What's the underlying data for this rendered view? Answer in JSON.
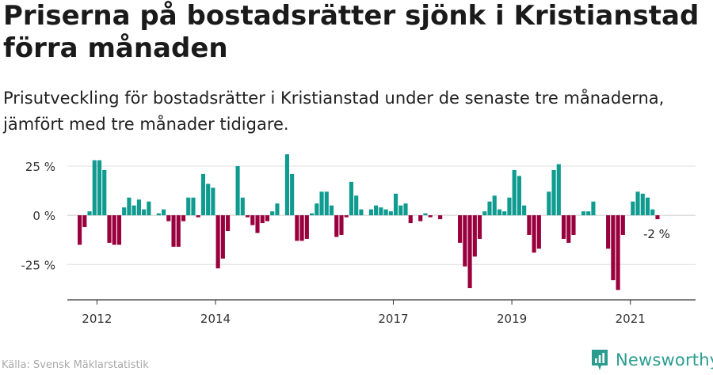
{
  "title": "Priserna på bostadsrätter sjönk i Kristianstad förra månaden",
  "subtitle": "Prisutveckling för bostadsrätter i Kristianstad under de senaste tre månaderna, jämfört med tre månader tidigare.",
  "source": "Källa: Svensk Mäklarstatistik",
  "brand": "Newsworthy",
  "colors": {
    "positive": "#0f9b90",
    "negative": "#99003d",
    "brand": "#2a9d8f",
    "grid": "#dddddd",
    "axis": "#333333"
  },
  "chart_data": {
    "type": "bar",
    "title": "Priserna på bostadsrätter sjönk i Kristianstad förra månaden",
    "ylabel": "",
    "xlabel": "",
    "y_unit": "%",
    "ylim": [
      -43,
      27
    ],
    "yticks": [
      25,
      0,
      -25
    ],
    "ytick_labels": [
      "25 %",
      "0 %",
      "-25 %"
    ],
    "x_start": 2011.7083,
    "x_step": 0.08333,
    "xticks": [
      2012,
      2014,
      2017,
      2019,
      2021
    ],
    "xtick_labels": [
      "2012",
      "2014",
      "2017",
      "2019",
      "2021"
    ],
    "xlim": [
      2011.5,
      2022.1
    ],
    "last_value_label": "-2 %",
    "values": [
      -15,
      -6,
      2,
      28,
      28,
      23,
      -14,
      -15,
      -15,
      4,
      9,
      5,
      8,
      3,
      7,
      0,
      1,
      3,
      -3,
      -16,
      -16,
      -3,
      9,
      9,
      -1,
      21,
      16,
      14,
      -27,
      -22,
      -8,
      0,
      25,
      9,
      -1,
      -5,
      -9,
      -4,
      -3,
      2,
      6,
      0,
      34,
      21,
      -13,
      -13,
      -12,
      1,
      6,
      12,
      12,
      5,
      -11,
      -10,
      -1,
      17,
      10,
      3,
      0,
      3,
      5,
      4,
      3,
      2,
      11,
      5,
      6,
      -4,
      0,
      -3,
      1,
      -1,
      0,
      -2,
      0,
      0,
      0,
      -14,
      -26,
      -37,
      -21,
      -12,
      2,
      7,
      10,
      3,
      2,
      9,
      23,
      20,
      5,
      -10,
      -19,
      -17,
      0,
      12,
      23,
      26,
      -12,
      -14,
      -10,
      0,
      2,
      2,
      7,
      0,
      0,
      -17,
      -33,
      -38,
      -10,
      0,
      7,
      12,
      11,
      9,
      3,
      -2
    ]
  }
}
